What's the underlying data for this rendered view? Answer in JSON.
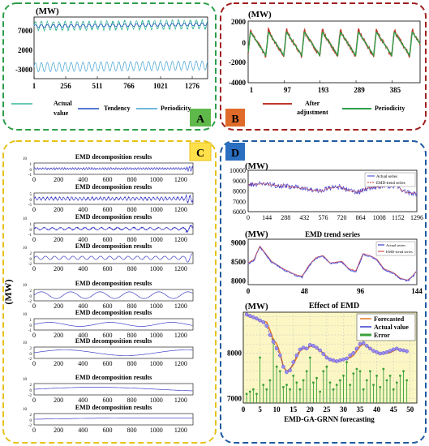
{
  "panels": {
    "A": {
      "badge": "A",
      "badge_color": "#5fb94a",
      "frame_color": "#2e9e4a",
      "unit": "(MW)",
      "chart_data": {
        "type": "line",
        "xticks": [
          "1",
          "256",
          "511",
          "766",
          "1021",
          "1276"
        ],
        "yticks": [
          "7000",
          "2000",
          "-3000"
        ],
        "xlim": [
          1,
          1400
        ],
        "ylim": [
          -4500,
          9000
        ],
        "series": [
          {
            "name": "Actual value",
            "color": "#37b59a",
            "mean": 7000,
            "amp": 900,
            "period": 48
          },
          {
            "name": "Tendency",
            "color": "#1f4fbf",
            "mean": 7000,
            "amp": 300,
            "period": 48
          },
          {
            "name": "Periodicity",
            "color": "#40a0d0",
            "mean": -2000,
            "amp": 1000,
            "period": 48
          }
        ],
        "legend": [
          "Actual value",
          "Tendency",
          "Periodicity"
        ]
      }
    },
    "B": {
      "badge": "B",
      "badge_color": "#e06a2a",
      "frame_color": "#a02020",
      "unit": "(MW)",
      "chart_data": {
        "type": "line",
        "xticks": [
          "1",
          "97",
          "193",
          "289",
          "385"
        ],
        "yticks": [
          "2000",
          "0",
          "-2000",
          "-4000"
        ],
        "xlim": [
          1,
          460
        ],
        "ylim": [
          -4000,
          2000
        ],
        "period": 48,
        "series": [
          {
            "name": "After adjustment",
            "color": "#c0392b",
            "amp": 1000
          },
          {
            "name": "Periodicity",
            "color": "#2e9e4a",
            "amp": 950
          }
        ],
        "legend": [
          "After adjustment",
          "Periodicity"
        ]
      }
    },
    "C": {
      "badge": "C",
      "badge_color": "#ffe04a",
      "frame_color": "#e6c21a",
      "ylabel": "(MW)",
      "title": "EMD decomposition results",
      "chart_data": {
        "type": "line",
        "xticks": [
          "0",
          "200",
          "400",
          "600",
          "800",
          "1000",
          "1200"
        ],
        "xlim": [
          0,
          1300
        ],
        "imfs": [
          {
            "title": "EMD decomposition results",
            "exp": "10",
            "yticks": [
              "1",
              "0",
              "-1"
            ],
            "freq": 0.9,
            "amp": 0.15
          },
          {
            "title": "EMD decomposition results",
            "exp": "",
            "yticks": [
              "5",
              "0",
              "-5"
            ],
            "freq": 0.6,
            "amp": 0.25
          },
          {
            "title": "EMD decomposition results",
            "exp": "10",
            "yticks": [
              "1",
              "0",
              "-1"
            ],
            "freq": 0.3,
            "amp": 0.2
          },
          {
            "title": "EMD decomposition results",
            "exp": "10",
            "yticks": [
              "2",
              "0",
              "-2"
            ],
            "freq": 0.08,
            "amp": 0.3
          },
          {
            "title": "EMD decomposition results",
            "exp": "10",
            "yticks": [
              "2",
              "0",
              "-2"
            ],
            "freq": 0.025,
            "amp": 0.6
          },
          {
            "title": "EMD decomposition results",
            "exp": "10",
            "yticks": [
              "1",
              "0",
              "-1"
            ],
            "freq": 0.012,
            "amp": 0.35
          },
          {
            "title": "EMD decomposition results",
            "exp": "10",
            "yticks": [
              "2",
              "0",
              "-2"
            ],
            "freq": 0.006,
            "amp": 0.5
          },
          {
            "title": "EMD decomposition results",
            "exp": "10",
            "yticks": [
              "2",
              "0",
              "-2"
            ],
            "freq": 0.003,
            "amp": 0.35
          },
          {
            "title": "EMD decomposition results",
            "exp": "10",
            "yticks": [
              "2",
              "0",
              "-2"
            ],
            "freq": 0.0015,
            "amp": 0.25
          }
        ]
      }
    },
    "D": {
      "badge": "D",
      "badge_color": "#2a6fc0",
      "frame_color": "#1f5aa0",
      "top": {
        "unit": "(MW)",
        "chart_data": {
          "type": "line",
          "xticks": [
            "0",
            "144",
            "288",
            "432",
            "576",
            "720",
            "864",
            "1008",
            "1152",
            "1296"
          ],
          "yticks": [
            "10000",
            "9000",
            "8000",
            "7000",
            "6000"
          ],
          "xlim": [
            0,
            1296
          ],
          "ylim": [
            6000,
            10000
          ],
          "legend": [
            "Actual series",
            "EMD-trend series"
          ],
          "series": [
            {
              "name": "Actual series",
              "color": "#3a3ad0"
            },
            {
              "name": "EMD-trend series",
              "color": "#c03030"
            }
          ]
        }
      },
      "mid": {
        "unit": "(MW)",
        "title": "EMD trend series",
        "chart_data": {
          "type": "line",
          "xticks": [
            "0",
            "48",
            "96",
            "144"
          ],
          "yticks": [
            "9000",
            "8500",
            "8000"
          ],
          "xlim": [
            0,
            144
          ],
          "ylim": [
            7900,
            9100
          ],
          "legend": [
            "Actual series",
            "EMD-trend series"
          ],
          "series": [
            {
              "name": "Actual series",
              "color": "#3a3ad0"
            },
            {
              "name": "EMD-trend series",
              "color": "#d05050"
            }
          ]
        }
      },
      "bottom": {
        "unit": "(MW)",
        "title": "Effect of EMD",
        "xlabel": "EMD-GA-GRNN forecasting",
        "chart_data": {
          "type": "line",
          "xticks": [
            "0",
            "5",
            "10",
            "15",
            "20",
            "25",
            "30",
            "35",
            "40",
            "45",
            "50"
          ],
          "yticks": [
            "8000",
            "7000"
          ],
          "xlim": [
            0,
            52
          ],
          "ylim": [
            6900,
            8900
          ],
          "legend": [
            "Forecasted",
            "Actual value",
            "Error"
          ],
          "x": [
            1,
            2,
            3,
            4,
            5,
            6,
            7,
            8,
            9,
            10,
            11,
            12,
            13,
            14,
            15,
            16,
            17,
            18,
            19,
            20,
            21,
            22,
            23,
            24,
            25,
            26,
            27,
            28,
            29,
            30,
            31,
            32,
            33,
            34,
            35,
            36,
            37,
            38,
            39,
            40,
            41,
            42,
            43,
            44,
            45,
            46,
            47,
            48,
            49
          ],
          "series": [
            {
              "name": "Forecasted",
              "color": "#e0782a",
              "values": [
                8830,
                8800,
                8780,
                8750,
                8700,
                8700,
                8680,
                8500,
                8300,
                8200,
                8000,
                7700,
                7600,
                7650,
                7750,
                7900,
                8050,
                8100,
                8080,
                8150,
                8150,
                8100,
                8050,
                8000,
                7900,
                7850,
                7820,
                7800,
                7830,
                7850,
                7880,
                7900,
                7950,
                8050,
                8150,
                8200,
                8150,
                8100,
                8050,
                8000,
                7980,
                7990,
                8000,
                8010,
                8050,
                8080,
                8060,
                8050,
                8030
              ]
            },
            {
              "name": "Actual value",
              "color": "#3a3ad0",
              "values": [
                8850,
                8820,
                8790,
                8760,
                8720,
                8680,
                8600,
                8400,
                8250,
                8100,
                7950,
                7700,
                7580,
                7620,
                7800,
                7950,
                8080,
                8120,
                8100,
                8180,
                8160,
                8120,
                8060,
                7980,
                7900,
                7860,
                7840,
                7820,
                7840,
                7860,
                7880,
                7950,
                8000,
                8100,
                8200,
                8220,
                8160,
                8100,
                8050,
                8020,
                7990,
                8000,
                8020,
                8050,
                8080,
                8100,
                8070,
                8060,
                8040
              ]
            },
            {
              "name": "Error",
              "color": "#3aa03a",
              "values": [
                7100,
                7150,
                7200,
                7100,
                7900,
                7300,
                7200,
                7400,
                8300,
                7700,
                7600,
                7250,
                7300,
                7200,
                7500,
                7350,
                7200,
                7400,
                7600,
                7900,
                7350,
                7450,
                7150,
                7600,
                7700,
                7350,
                7200,
                7300,
                7400,
                7500,
                7800,
                7300,
                7550,
                7650,
                7600,
                7200,
                7400,
                7600,
                7300,
                7500,
                7250,
                7650,
                7400,
                7500,
                7200,
                7350,
                7500,
                7600,
                7400
              ]
            }
          ]
        }
      }
    }
  }
}
